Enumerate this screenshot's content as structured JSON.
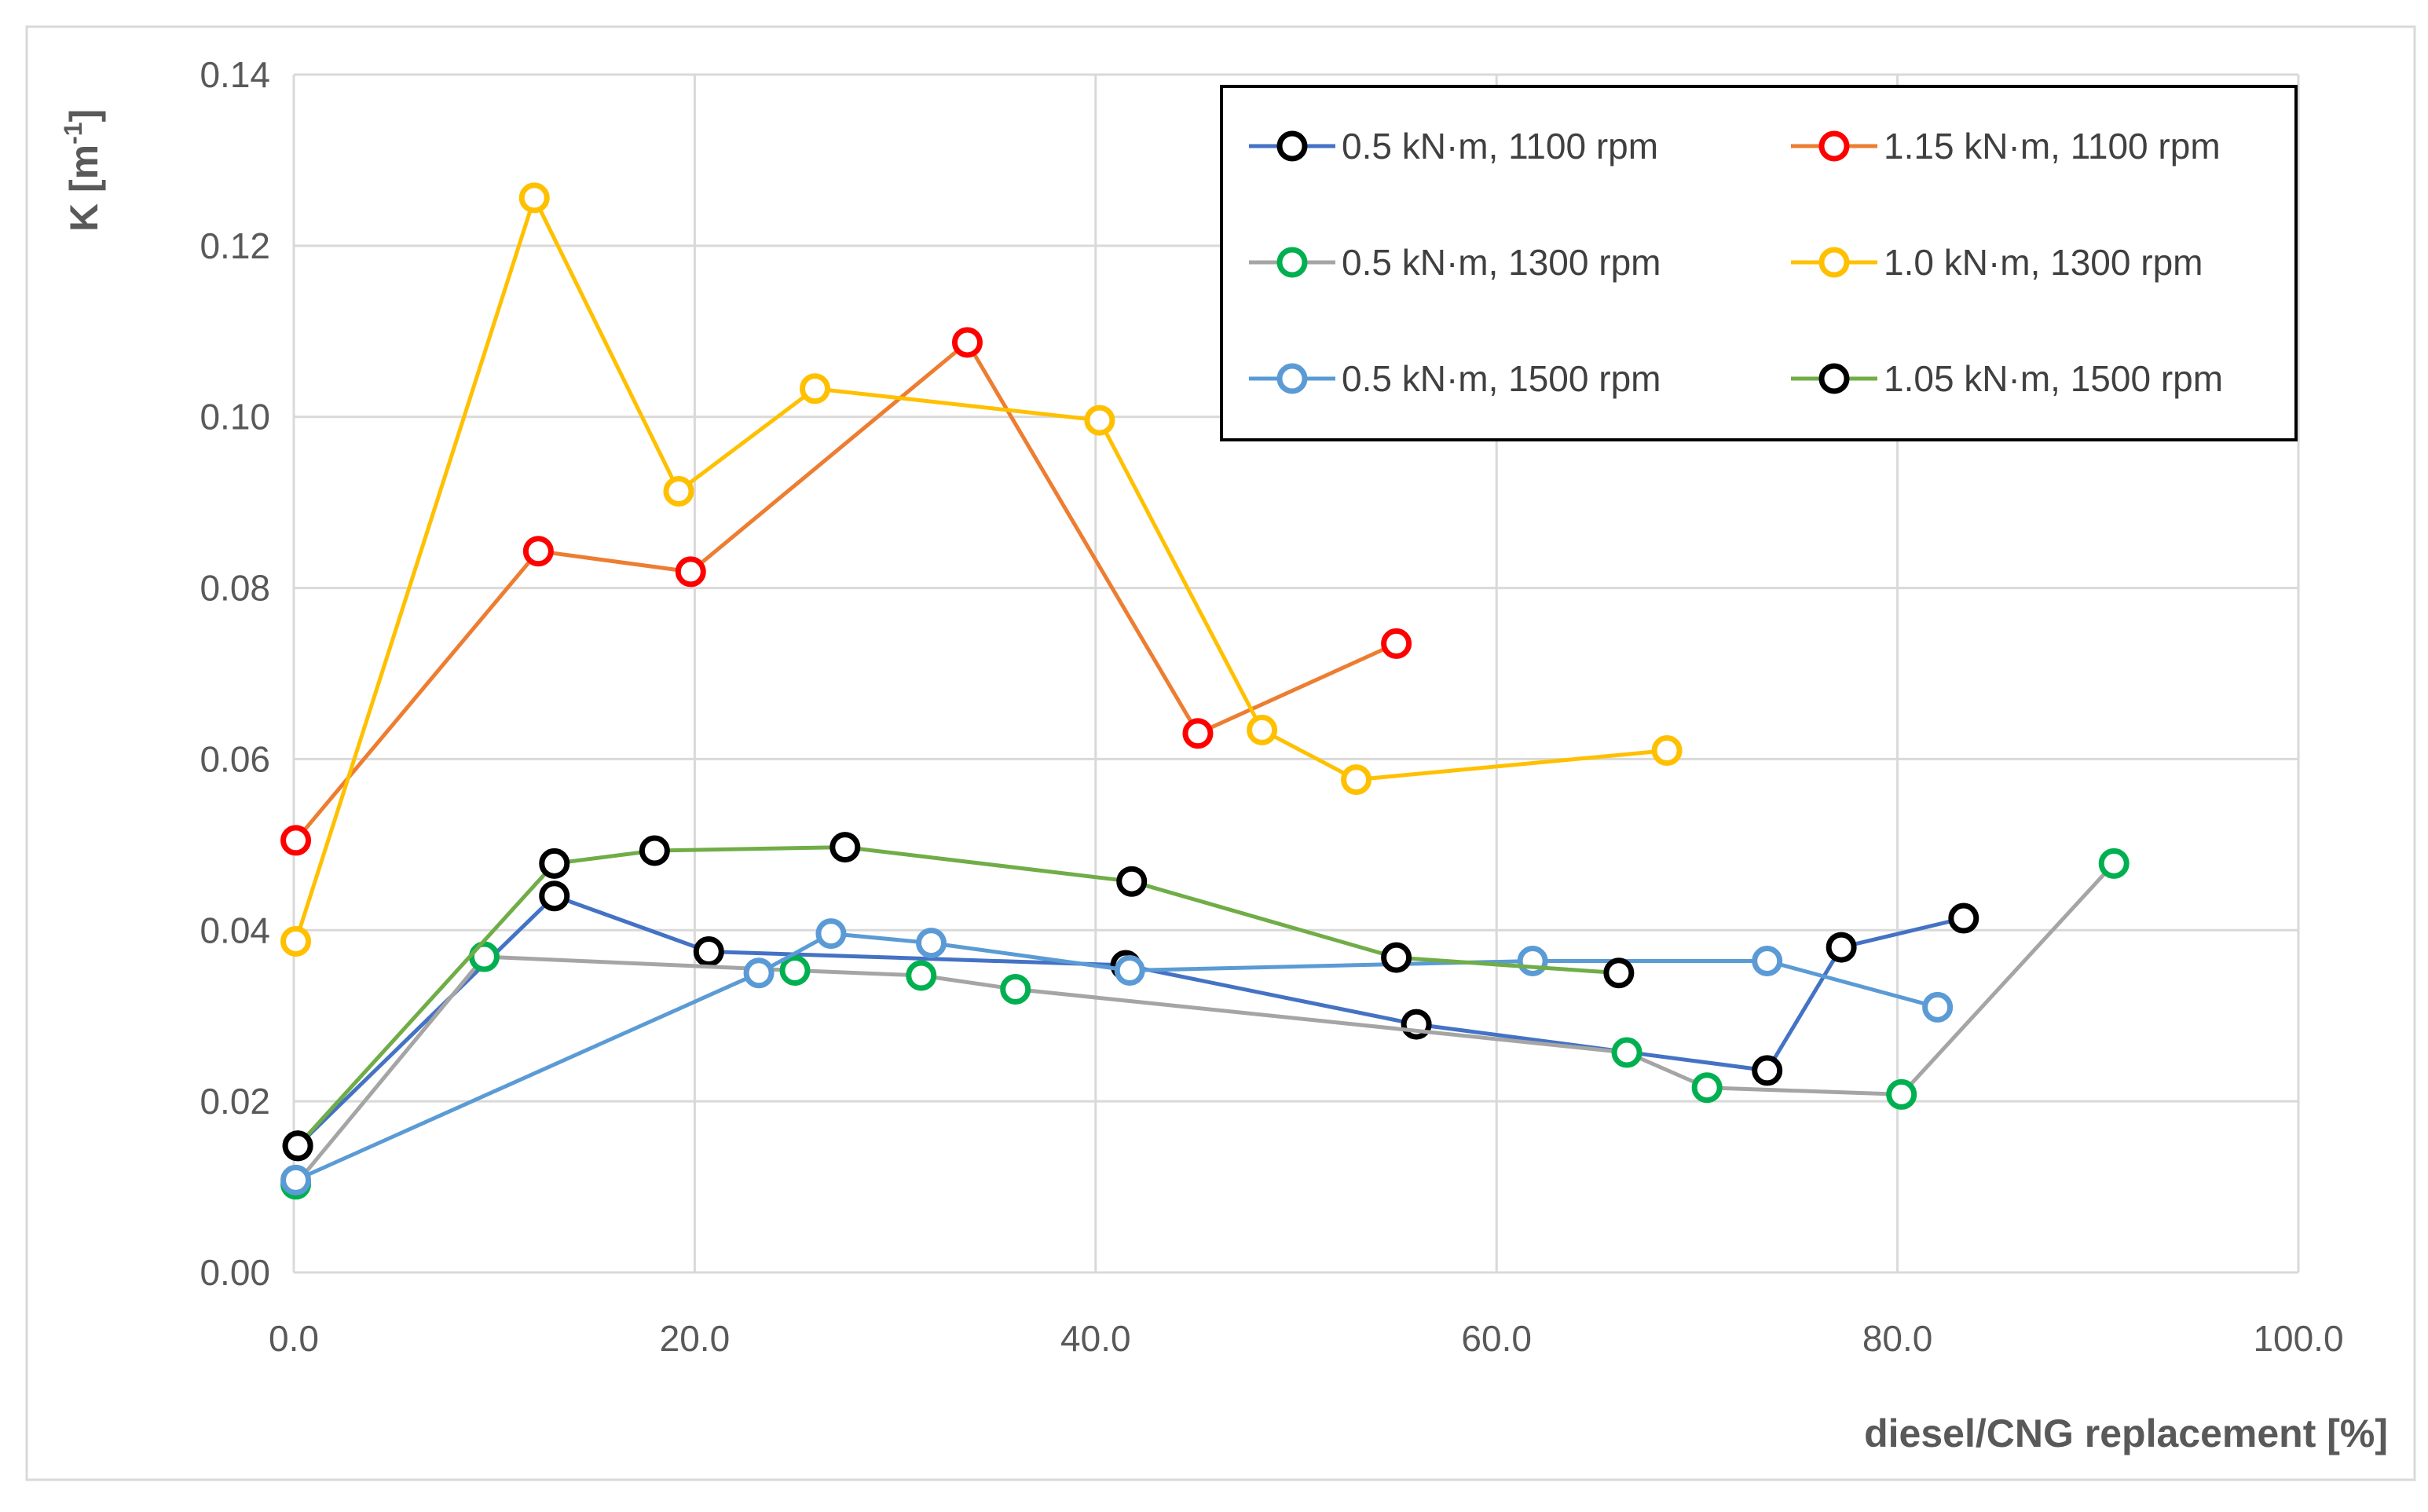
{
  "chart_data": {
    "type": "line",
    "title": "",
    "xlabel": "diesel/CNG replacement [%]",
    "ylabel_main": "K [m",
    "ylabel_sup": "-1",
    "ylabel_close": "]",
    "xlim": [
      0,
      100
    ],
    "ylim": [
      0,
      0.14
    ],
    "x_ticks": [
      0,
      20,
      40,
      60,
      80,
      100
    ],
    "x_tick_labels": [
      "0.0",
      "20.0",
      "40.0",
      "60.0",
      "80.0",
      "100.0"
    ],
    "y_ticks": [
      0,
      0.02,
      0.04,
      0.06,
      0.08,
      0.1,
      0.12,
      0.14
    ],
    "y_tick_labels": [
      "0.00",
      "0.02",
      "0.04",
      "0.06",
      "0.08",
      "0.10",
      "0.12",
      "0.14"
    ],
    "grid": true,
    "legend_position": "top-right",
    "series": [
      {
        "name": "0.5 kN·m, 1100 rpm",
        "line_color": "#4472C4",
        "marker_color": "#000000",
        "x": [
          0.2,
          13.0,
          20.7,
          41.5,
          56.0,
          73.5,
          77.2,
          83.3
        ],
        "y": [
          0.0148,
          0.044,
          0.0375,
          0.0359,
          0.029,
          0.0236,
          0.038,
          0.0414
        ]
      },
      {
        "name": "1.15 kN·m, 1100 rpm",
        "line_color": "#ED7D31",
        "marker_color": "#FF0000",
        "x": [
          0.1,
          12.2,
          19.8,
          33.6,
          45.1,
          55.0
        ],
        "y": [
          0.0505,
          0.0843,
          0.0819,
          0.1087,
          0.063,
          0.0735
        ]
      },
      {
        "name": "0.5 kN·m, 1300 rpm",
        "line_color": "#A5A5A5",
        "marker_color": "#00B050",
        "x": [
          0.1,
          9.5,
          25.0,
          31.3,
          36.0,
          66.5,
          70.5,
          80.2,
          90.8
        ],
        "y": [
          0.0103,
          0.0369,
          0.0353,
          0.0347,
          0.0331,
          0.0257,
          0.0216,
          0.0208,
          0.0478
        ]
      },
      {
        "name": "1.0 kN·m, 1300 rpm",
        "line_color": "#FFC000",
        "marker_color": "#FFC000",
        "x": [
          0.1,
          12.0,
          19.2,
          26.0,
          40.2,
          48.3,
          53.0,
          68.5
        ],
        "y": [
          0.0387,
          0.1256,
          0.0913,
          0.1033,
          0.0996,
          0.0634,
          0.0576,
          0.061
        ]
      },
      {
        "name": "0.5 kN·m, 1500 rpm",
        "line_color": "#5B9BD5",
        "marker_color": "#5B9BD5",
        "x": [
          0.1,
          23.2,
          26.8,
          31.8,
          41.7,
          61.8,
          73.5,
          82.0
        ],
        "y": [
          0.0108,
          0.035,
          0.0396,
          0.0385,
          0.0353,
          0.0364,
          0.0364,
          0.031
        ]
      },
      {
        "name": "1.05 kN·m, 1500 rpm",
        "line_color": "#70AD47",
        "marker_color": "#000000",
        "x": [
          0.2,
          13.0,
          18.0,
          27.5,
          41.8,
          55.0,
          66.1
        ],
        "y": [
          0.0148,
          0.0478,
          0.0493,
          0.0497,
          0.0457,
          0.0368,
          0.035
        ]
      }
    ]
  }
}
